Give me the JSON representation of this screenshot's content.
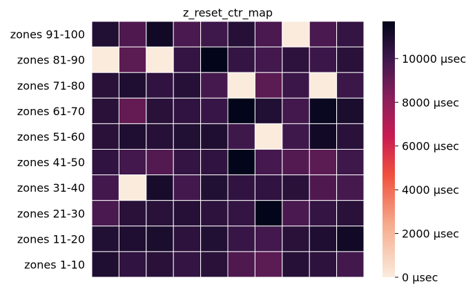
{
  "chart_data": {
    "type": "heatmap",
    "title": "z_reset_ctr_map",
    "xlabel": "",
    "ylabel": "",
    "row_labels": [
      "zones 91-100",
      "zones 81-90",
      "zones 71-80",
      "zones 61-70",
      "zones 51-60",
      "zones 41-50",
      "zones 31-40",
      "zones 21-30",
      "zones 11-20",
      "zones 1-10"
    ],
    "columns": 10,
    "values": [
      [
        10800,
        9600,
        11300,
        9700,
        10000,
        10700,
        9700,
        0,
        9700,
        10300
      ],
      [
        0,
        9300,
        0,
        10300,
        11700,
        10300,
        9900,
        10500,
        10100,
        10600
      ],
      [
        10600,
        10900,
        10400,
        10700,
        9800,
        0,
        9300,
        10100,
        0,
        10100
      ],
      [
        10600,
        9100,
        10600,
        10400,
        10200,
        11700,
        10800,
        9900,
        11500,
        11000
      ],
      [
        10600,
        10900,
        10700,
        10800,
        10900,
        10000,
        0,
        10000,
        11300,
        10600
      ],
      [
        10400,
        9900,
        9500,
        10300,
        10400,
        11700,
        9800,
        9500,
        9300,
        10000
      ],
      [
        9900,
        0,
        11100,
        9900,
        10800,
        10400,
        10400,
        10600,
        9600,
        9800
      ],
      [
        9700,
        10600,
        10600,
        10700,
        10500,
        10300,
        11700,
        9700,
        10300,
        10600
      ],
      [
        10800,
        10900,
        11000,
        10500,
        10800,
        10200,
        9900,
        10600,
        10900,
        11300
      ],
      [
        10900,
        10400,
        10600,
        10300,
        10600,
        9600,
        9300,
        10700,
        10500,
        9900
      ]
    ],
    "colorbar": {
      "min": 0,
      "max": 11700,
      "ticks": [
        0,
        2000,
        4000,
        6000,
        8000,
        10000
      ],
      "tick_labels": [
        "0 µsec",
        "2000 µsec",
        "4000 µsec",
        "6000 µsec",
        "8000 µsec",
        "10000 µsec"
      ],
      "colormap": "rocket_r"
    },
    "grid": "white cell borders",
    "legend": "colorbar right"
  }
}
